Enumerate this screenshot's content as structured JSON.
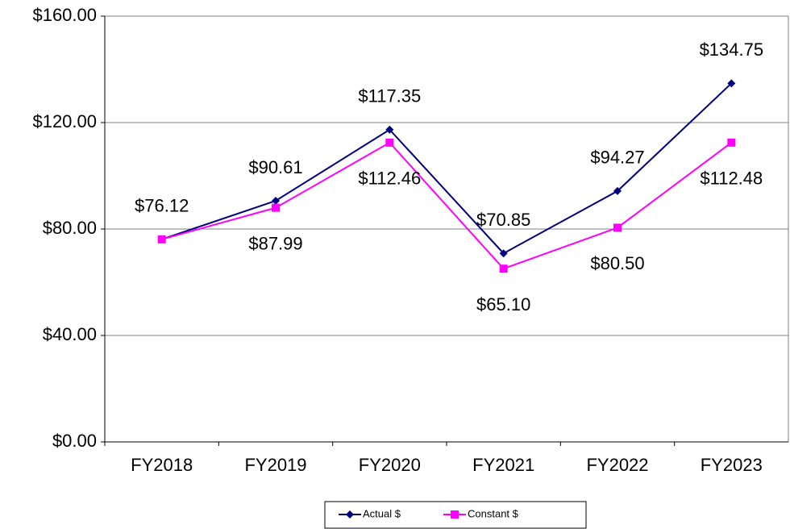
{
  "chart_data": {
    "type": "line",
    "categories": [
      "FY2018",
      "FY2019",
      "FY2020",
      "FY2021",
      "FY2022",
      "FY2023"
    ],
    "series": [
      {
        "name": "Actual $",
        "color": "#000080",
        "marker": "diamond",
        "values": [
          76.12,
          90.61,
          117.35,
          70.85,
          94.27,
          134.75
        ],
        "value_labels": [
          "$76.12",
          "$90.61",
          "$117.35",
          "$70.85",
          "$94.27",
          "$134.75"
        ]
      },
      {
        "name": "Constant $",
        "color": "#ff00ff",
        "marker": "square",
        "values": [
          76.12,
          87.99,
          112.46,
          65.1,
          80.5,
          112.48
        ],
        "value_labels": [
          null,
          "$87.99",
          "$112.46",
          "$65.10",
          "$80.50",
          "$112.48"
        ]
      }
    ],
    "ylim": [
      0,
      160
    ],
    "yticks": [
      {
        "value": 0,
        "label": "$0.00"
      },
      {
        "value": 40,
        "label": "$40.00"
      },
      {
        "value": 80,
        "label": "$80.00"
      },
      {
        "value": 120,
        "label": "$120.00"
      },
      {
        "value": 160,
        "label": "$160.00"
      }
    ],
    "grid": true,
    "legend": "bottom"
  }
}
